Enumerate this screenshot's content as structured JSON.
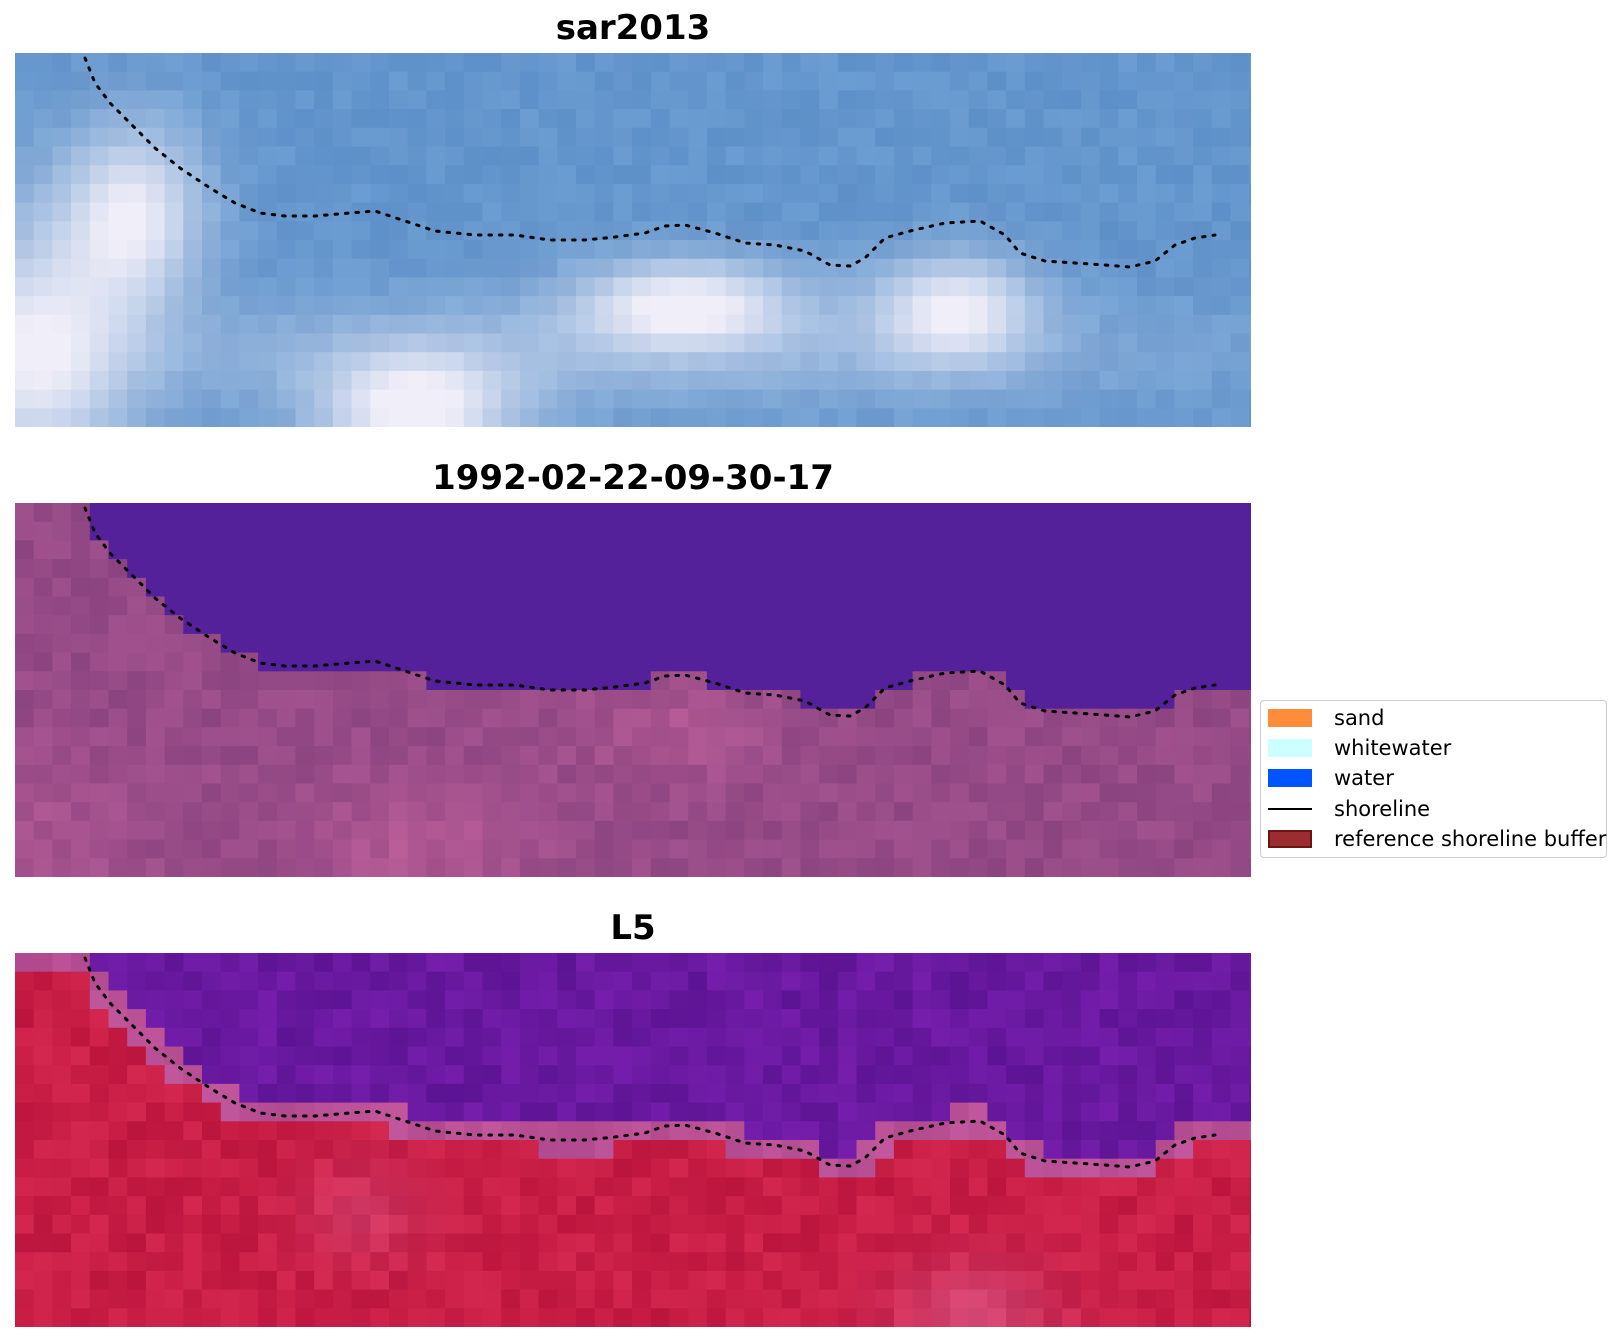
{
  "panels": [
    {
      "title": "sar2013",
      "palette": "sar"
    },
    {
      "title": "1992-02-22-09-30-17",
      "palette": "classified"
    },
    {
      "title": "L5",
      "palette": "l5"
    }
  ],
  "legend": {
    "items": [
      {
        "label": "sand",
        "type": "patch",
        "color": "#ff8c3a",
        "edge": "#ff8c3a"
      },
      {
        "label": "whitewater",
        "type": "patch",
        "color": "#ccffff",
        "edge": "#ccffff"
      },
      {
        "label": "water",
        "type": "patch",
        "color": "#0055ff",
        "edge": "#0055ff"
      },
      {
        "label": "shoreline",
        "type": "line",
        "color": "#000000"
      },
      {
        "label": "reference shoreline buffer",
        "type": "patch",
        "color": "#9b2d30",
        "edge": "#6b1416"
      }
    ]
  },
  "colors": {
    "water_class": "#54219a",
    "shoreline": "#000000"
  }
}
